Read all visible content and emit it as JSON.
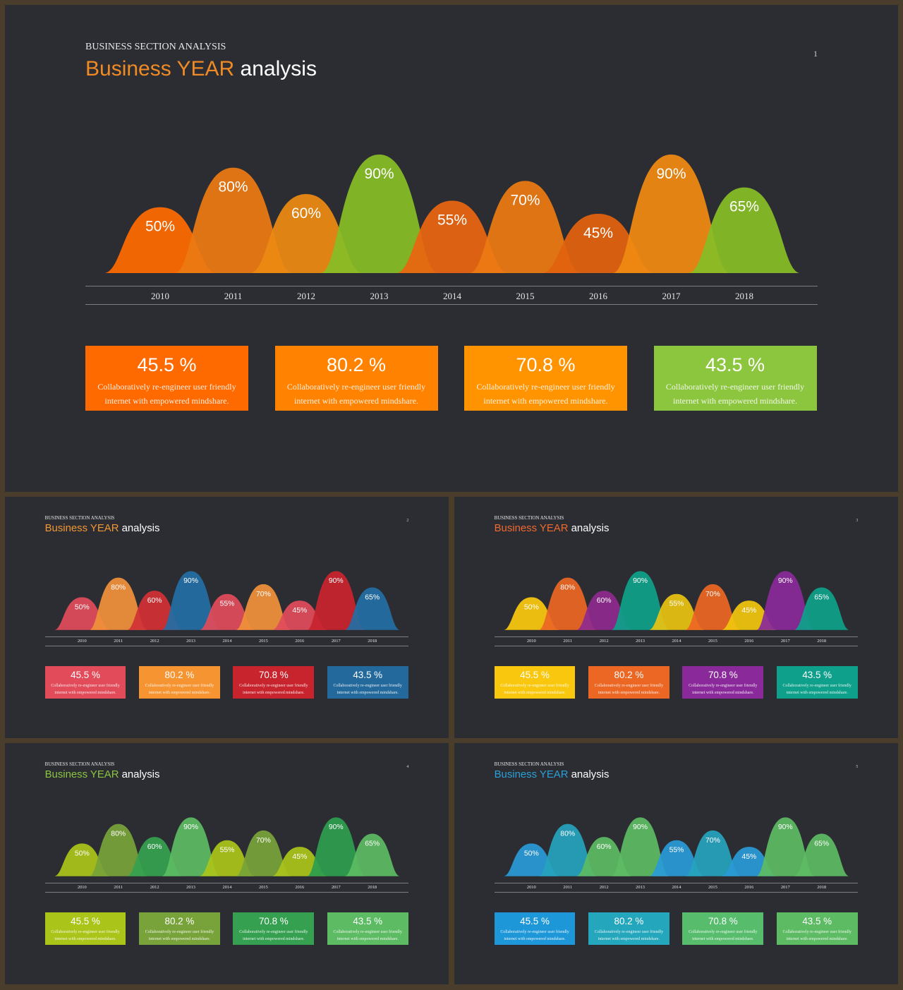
{
  "kicker": "BUSINESS SECTION ANALYSIS",
  "title": {
    "highlight": "Business YEAR",
    "rest": " analysis"
  },
  "card_description": "Collaboratively re-engineer user friendly internet with empowered mindshare.",
  "chart_data": {
    "type": "area",
    "categories": [
      "2010",
      "2011",
      "2012",
      "2013",
      "2014",
      "2015",
      "2016",
      "2017",
      "2018"
    ],
    "values": [
      50,
      80,
      60,
      90,
      55,
      70,
      45,
      90,
      65
    ],
    "value_labels": [
      "50%",
      "80%",
      "60%",
      "90%",
      "55%",
      "70%",
      "45%",
      "90%",
      "65%"
    ],
    "ylim": [
      0,
      100
    ]
  },
  "cards": [
    {
      "value": "45.5 %"
    },
    {
      "value": "80.2 %"
    },
    {
      "value": "70.8 %"
    },
    {
      "value": "43.5 %"
    }
  ],
  "slides": [
    {
      "page": "1",
      "title_color": "#f08a24",
      "hill_colors": [
        "#ff6a00",
        "#ec7a12",
        "#ec8a12",
        "#86bd26",
        "#ea6510",
        "#ec7a12",
        "#e2620e",
        "#f08a12",
        "#86bd26"
      ],
      "card_colors": [
        "#ff6a00",
        "#ff8200",
        "#ff9400",
        "#8cc63f"
      ]
    },
    {
      "page": "2",
      "title_color": "#f29733",
      "hill_colors": [
        "#e14b5a",
        "#f0913a",
        "#d23036",
        "#236ea4",
        "#e14b5a",
        "#f0913a",
        "#e14b5a",
        "#c8242e",
        "#236ea4"
      ],
      "card_colors": [
        "#e14b5a",
        "#f79432",
        "#c8242e",
        "#23699c"
      ]
    },
    {
      "page": "3",
      "title_color": "#f06a30",
      "hill_colors": [
        "#f9c80e",
        "#ec6624",
        "#8e2a8e",
        "#0ea08a",
        "#e8c212",
        "#ec6624",
        "#f0c50e",
        "#8a2a9a",
        "#0ea08a"
      ],
      "card_colors": [
        "#f9c80e",
        "#ec6624",
        "#8a2a9a",
        "#0ea08a"
      ]
    },
    {
      "page": "4",
      "title_color": "#8cc63f",
      "hill_colors": [
        "#aac419",
        "#78a33a",
        "#35a050",
        "#5dbb63",
        "#aac419",
        "#78a33a",
        "#aac419",
        "#2d9e4f",
        "#5dbb63"
      ],
      "card_colors": [
        "#aac419",
        "#78a33a",
        "#35a050",
        "#5dbb63"
      ]
    },
    {
      "page": "5",
      "title_color": "#2aa0d8",
      "hill_colors": [
        "#2a9ad6",
        "#26a2bd",
        "#5dbb63",
        "#5dbb63",
        "#2a9ad6",
        "#26a2bd",
        "#2a9ad6",
        "#5dbb63",
        "#5dbb63"
      ],
      "card_colors": [
        "#1e97d8",
        "#24a6bd",
        "#57bd6c",
        "#5dbb63"
      ]
    }
  ]
}
